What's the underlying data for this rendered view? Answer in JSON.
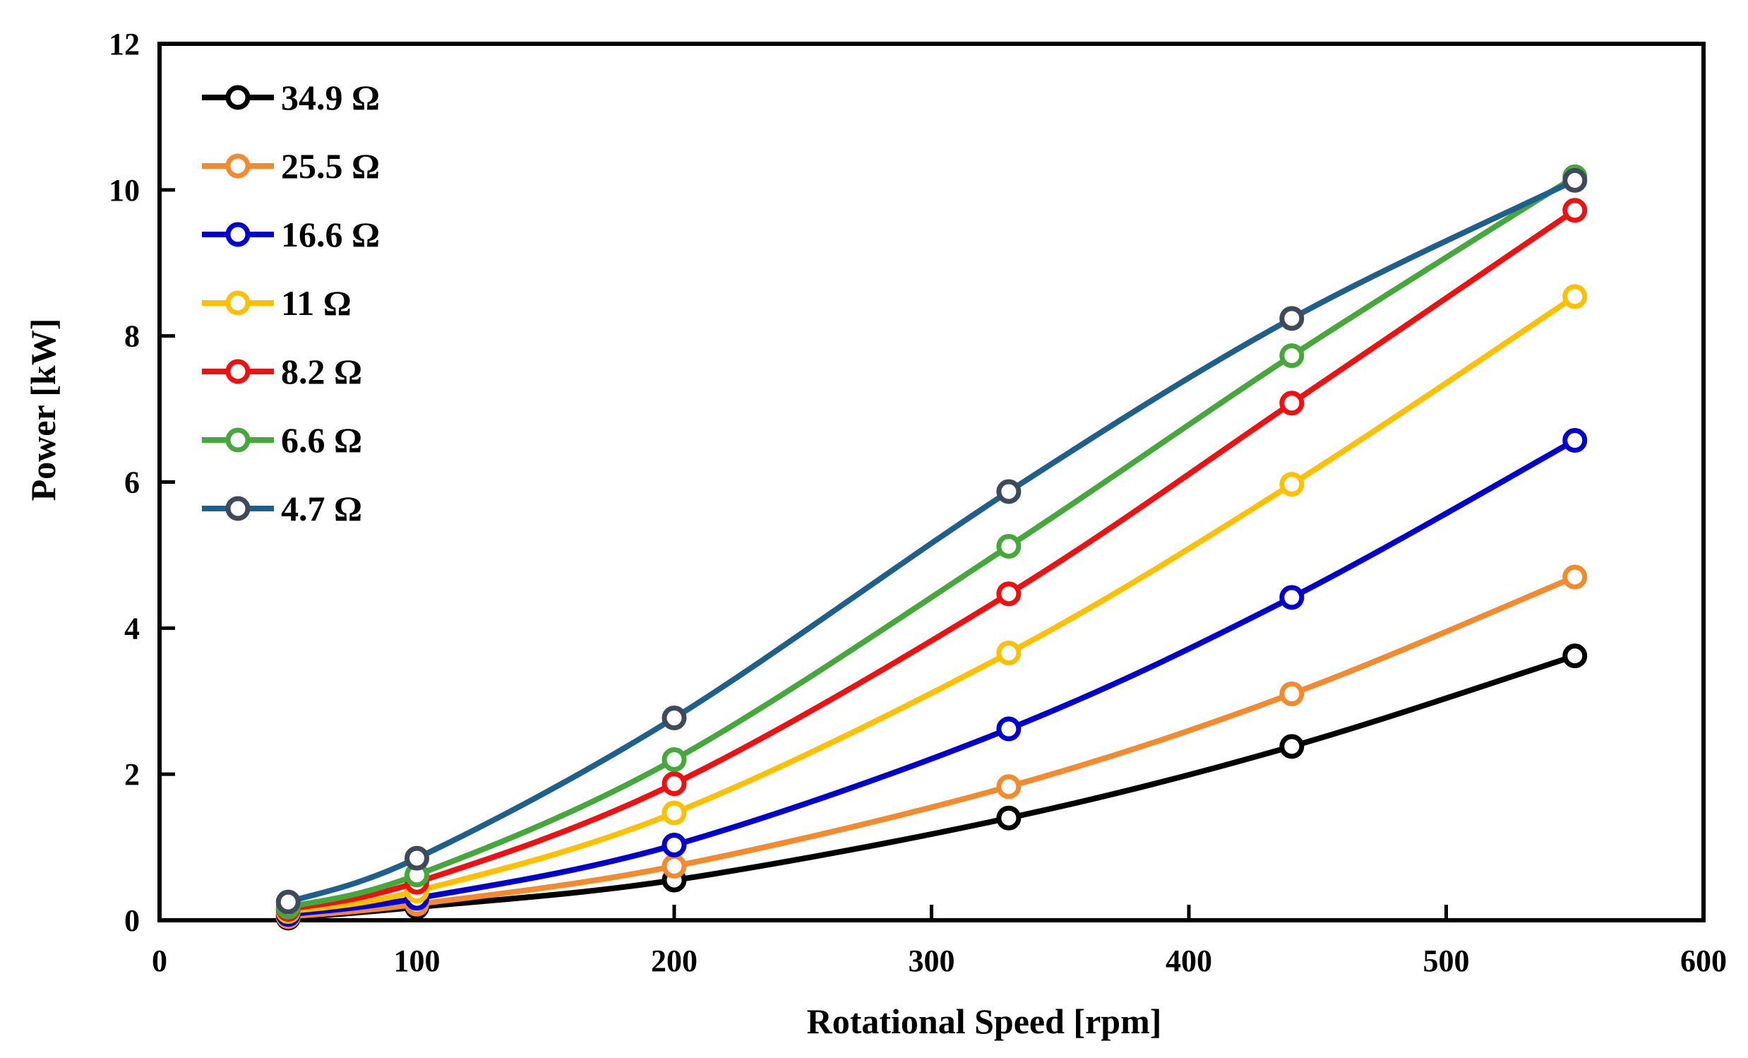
{
  "chart_data": {
    "type": "line",
    "title": "",
    "xlabel": "Rotational Speed [rpm]",
    "ylabel": "Power [kW]",
    "xlim": [
      0,
      600
    ],
    "ylim": [
      0,
      12
    ],
    "xticks": [
      0,
      100,
      200,
      300,
      400,
      500,
      600
    ],
    "yticks": [
      0,
      2,
      4,
      6,
      8,
      10,
      12
    ],
    "grid": false,
    "legend_position": "top-left",
    "x": [
      50,
      100,
      200,
      330,
      440,
      550
    ],
    "series": [
      {
        "name": "34.9 Ω",
        "color": "#000000",
        "values": [
          0.03,
          0.18,
          0.55,
          1.4,
          2.38,
          3.62
        ]
      },
      {
        "name": "25.5 Ω",
        "color": "#f28a30",
        "values": [
          0.05,
          0.22,
          0.74,
          1.83,
          3.1,
          4.7
        ]
      },
      {
        "name": "16.6 Ω",
        "color": "#0000cc",
        "values": [
          0.08,
          0.3,
          1.03,
          2.62,
          4.42,
          6.57
        ]
      },
      {
        "name": "11 Ω",
        "color": "#ffc000",
        "values": [
          0.12,
          0.4,
          1.47,
          3.66,
          5.97,
          8.54
        ]
      },
      {
        "name": "8.2 Ω",
        "color": "#ee1111",
        "values": [
          0.15,
          0.52,
          1.87,
          4.47,
          7.08,
          9.72
        ]
      },
      {
        "name": "6.6 Ω",
        "color": "#46a83c",
        "values": [
          0.18,
          0.62,
          2.2,
          5.12,
          7.73,
          10.18
        ]
      },
      {
        "name": "4.7 Ω",
        "color": "#1f5f8b",
        "marker_color": "#3e4a5a",
        "values": [
          0.25,
          0.85,
          2.77,
          5.87,
          8.24,
          10.13
        ]
      }
    ]
  }
}
